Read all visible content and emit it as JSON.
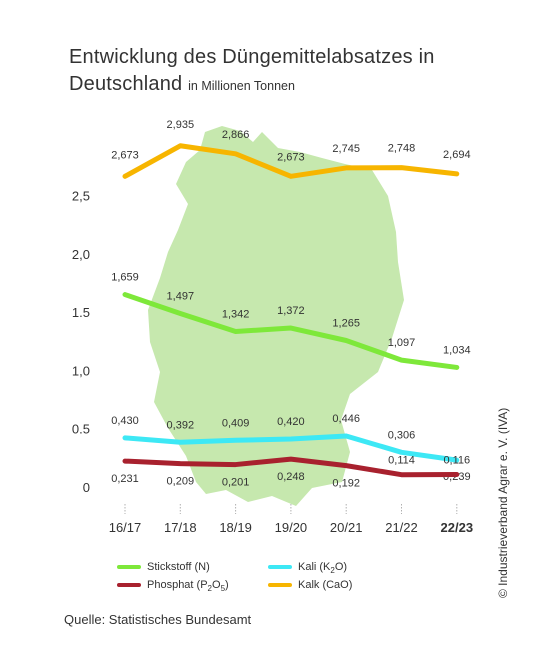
{
  "title": {
    "main": "Entwicklung des Düngemittelabsatzes in Deutschland",
    "sub": "in Millionen Tonnen"
  },
  "source": "Quelle: Statistisches Bundesamt",
  "credit": "© Industrieverband Agrar e. V. (IVA)",
  "legend": {
    "stickstoff": "Stickstoff (N)",
    "kali_prefix": "Kali (K",
    "kali_sub": "2",
    "kali_suffix": "O)",
    "phosphat_prefix": "Phosphat (P",
    "phosphat_sub1": "2",
    "phosphat_mid": "O",
    "phosphat_sub2": "5",
    "phosphat_suffix": ")",
    "kalk": "Kalk (CaO)"
  },
  "chart_data": {
    "type": "line",
    "title": "Entwicklung des Düngemittelabsatzes in Deutschland",
    "subtitle": "in Millionen Tonnen",
    "categories": [
      "16/17",
      "17/18",
      "18/19",
      "19/20",
      "20/21",
      "21/22",
      "22/23"
    ],
    "highlight_category": "22/23",
    "y_ticks": [
      "0",
      "0.5",
      "1,0",
      "1.5",
      "2,0",
      "2,5"
    ],
    "ylim": [
      0,
      3.0
    ],
    "series": [
      {
        "name": "Kalk (CaO)",
        "color": "#f7b500",
        "values": [
          2.673,
          2.935,
          2.866,
          2.673,
          2.745,
          2.748,
          2.694
        ],
        "labels": [
          "2,673",
          "2,935",
          "2,866",
          "2,673",
          "2,745",
          "2,748",
          "2,694"
        ]
      },
      {
        "name": "Stickstoff (N)",
        "color": "#7ee83a",
        "values": [
          1.659,
          1.497,
          1.342,
          1.372,
          1.265,
          1.097,
          1.034
        ],
        "labels": [
          "1,659",
          "1,497",
          "1,342",
          "1,372",
          "1,265",
          "1,097",
          "1,034"
        ]
      },
      {
        "name": "Kali (K2O)",
        "color": "#3de8f5",
        "values": [
          0.43,
          0.392,
          0.409,
          0.42,
          0.446,
          0.306,
          0.239
        ],
        "labels": [
          "0,430",
          "0,392",
          "0,409",
          "0,420",
          "0,446",
          "0,306",
          "0,239"
        ]
      },
      {
        "name": "Phosphat (P2O5)",
        "color": "#a8212e",
        "values": [
          0.231,
          0.209,
          0.201,
          0.248,
          0.192,
          0.114,
          0.116
        ],
        "labels": [
          "0,231",
          "0,209",
          "0,201",
          "0,248",
          "0,192",
          "0,114",
          "0,116"
        ]
      }
    ],
    "background_shape": "map of Germany",
    "background_color": "#c5e7ad",
    "grid": false,
    "legend_position": "bottom"
  }
}
